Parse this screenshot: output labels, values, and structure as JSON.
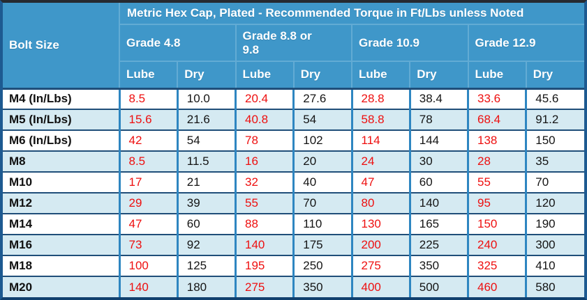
{
  "colors": {
    "header_bg": "#3f97c9",
    "header_grid": "#62abd4",
    "header_text": "#ffffff",
    "row_bg": "#ffffff",
    "row_alt_bg": "#d5eaf2",
    "lube_value_text": "#ee0f0f",
    "dry_value_text": "#141414",
    "grid_vertical": "#2e86c1",
    "grid_horizontal": "#1f4e79",
    "outer_border": "#1d5a91"
  },
  "chart_data": {
    "type": "table",
    "title": "Metric Hex Cap, Plated - Recommended Torque in Ft/Lbs unless Noted",
    "corner_header": "Bolt Size",
    "column_groups": [
      "Grade 4.8",
      "Grade 8.8 or 9.8",
      "Grade 10.9",
      "Grade 12.9"
    ],
    "sub_columns": [
      "Lube",
      "Dry"
    ],
    "rows": [
      {
        "bolt_size": "M4 (In/Lbs)",
        "values": [
          "8.5",
          "10.0",
          "20.4",
          "27.6",
          "28.8",
          "38.4",
          "33.6",
          "45.6"
        ]
      },
      {
        "bolt_size": "M5 (In/Lbs)",
        "values": [
          "15.6",
          "21.6",
          "40.8",
          "54",
          "58.8",
          "78",
          "68.4",
          "91.2"
        ]
      },
      {
        "bolt_size": "M6 (In/Lbs)",
        "values": [
          "42",
          "54",
          "78",
          "102",
          "114",
          "144",
          "138",
          "150"
        ]
      },
      {
        "bolt_size": "M8",
        "values": [
          "8.5",
          "11.5",
          "16",
          "20",
          "24",
          "30",
          "28",
          "35"
        ]
      },
      {
        "bolt_size": "M10",
        "values": [
          "17",
          "21",
          "32",
          "40",
          "47",
          "60",
          "55",
          "70"
        ]
      },
      {
        "bolt_size": "M12",
        "values": [
          "29",
          "39",
          "55",
          "70",
          "80",
          "140",
          "95",
          "120"
        ]
      },
      {
        "bolt_size": "M14",
        "values": [
          "47",
          "60",
          "88",
          "110",
          "130",
          "165",
          "150",
          "190"
        ]
      },
      {
        "bolt_size": "M16",
        "values": [
          "73",
          "92",
          "140",
          "175",
          "200",
          "225",
          "240",
          "300"
        ]
      },
      {
        "bolt_size": "M18",
        "values": [
          "100",
          "125",
          "195",
          "250",
          "275",
          "350",
          "325",
          "410"
        ]
      },
      {
        "bolt_size": "M20",
        "values": [
          "140",
          "180",
          "275",
          "350",
          "400",
          "500",
          "460",
          "580"
        ]
      }
    ]
  }
}
